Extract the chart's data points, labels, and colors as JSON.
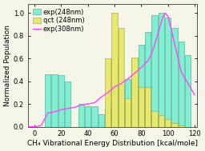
{
  "exp248_x": [
    10,
    15,
    20,
    25,
    35,
    40,
    45,
    50,
    55,
    60,
    65,
    70,
    75,
    80,
    85,
    90,
    95,
    100,
    105,
    110,
    115
  ],
  "exp248_y": [
    0.46,
    0.46,
    0.45,
    0.4,
    0.2,
    0.18,
    0.18,
    0.11,
    0.17,
    0.6,
    0.36,
    0.42,
    0.6,
    0.72,
    0.83,
    0.98,
    1.0,
    0.96,
    0.87,
    0.75,
    0.63
  ],
  "qct248_x": [
    55,
    60,
    65,
    70,
    75,
    80,
    85,
    90,
    95,
    100,
    105,
    110,
    115
  ],
  "qct248_y": [
    0.6,
    1.0,
    0.87,
    0.25,
    0.61,
    0.35,
    0.35,
    0.14,
    0.1,
    0.07,
    0.03,
    0.01,
    0.0
  ],
  "exp308_x": [
    -5,
    0,
    5,
    10,
    15,
    20,
    25,
    30,
    35,
    40,
    45,
    50,
    55,
    60,
    65,
    70,
    75,
    80,
    85,
    88,
    90,
    92,
    94,
    96,
    98,
    100,
    102,
    104,
    106,
    108,
    110,
    115,
    120
  ],
  "exp308_y": [
    0.0,
    0.0,
    0.01,
    0.12,
    0.13,
    0.15,
    0.16,
    0.17,
    0.19,
    0.2,
    0.21,
    0.26,
    0.3,
    0.35,
    0.38,
    0.42,
    0.47,
    0.52,
    0.58,
    0.65,
    0.72,
    0.8,
    0.88,
    0.96,
    1.0,
    0.97,
    0.88,
    0.78,
    0.68,
    0.58,
    0.48,
    0.38,
    0.28
  ],
  "bar_width": 4.5,
  "exp248_color": "#80F0D0",
  "qct248_color": "#E8E870",
  "exp308_color": "#FF44FF",
  "bg_color": "#F5F5E8",
  "xlabel": "CH₄ Vibrational Energy Distribution [kcal/mole]",
  "ylabel": "Normalized Population",
  "xlim": [
    -5,
    122
  ],
  "ylim": [
    0.0,
    1.08
  ],
  "xticks": [
    0,
    20,
    40,
    60,
    80,
    100,
    120
  ],
  "yticks": [
    0.0,
    0.2,
    0.4,
    0.6,
    0.8,
    1.0
  ],
  "legend_labels": [
    "exp(248nm)",
    "qct (248nm)",
    "exp(308nm)"
  ],
  "axis_fontsize": 6.5,
  "tick_fontsize": 6,
  "legend_fontsize": 6
}
